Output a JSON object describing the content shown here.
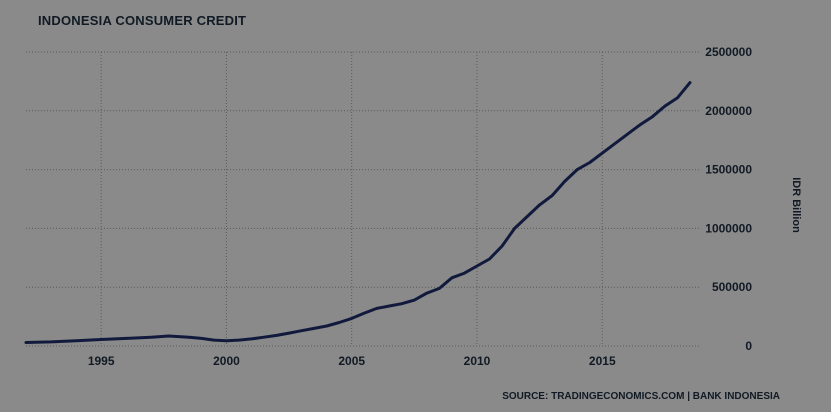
{
  "header": {
    "title": "INDONESIA CONSUMER CREDIT"
  },
  "footer": {
    "source": "SOURCE: TRADINGECONOMICS.COM | BANK INDONESIA"
  },
  "colors": {
    "background": "#8a8a8a",
    "line": "#111a3c",
    "grid": "#5a5a5a",
    "text": "#111a24"
  },
  "chart_data": {
    "type": "line",
    "title": "INDONESIA CONSUMER CREDIT",
    "xlabel": "",
    "ylabel": "IDR Billion",
    "xlim": [
      1992.0,
      2018.9
    ],
    "ylim": [
      0,
      2500000
    ],
    "x_ticks": [
      1995,
      2000,
      2005,
      2010,
      2015
    ],
    "x_tick_labels": [
      "1995",
      "2000",
      "2005",
      "2010",
      "2015"
    ],
    "y_ticks": [
      0,
      500000,
      1000000,
      1500000,
      2000000,
      2500000
    ],
    "y_tick_labels": [
      "0",
      "500000",
      "1000000",
      "1500000",
      "2000000",
      "2500000"
    ],
    "y_axis_position": "right",
    "grid": true,
    "series": [
      {
        "x": [
          1992.0,
          1993.0,
          1994.0,
          1995.0,
          1996.0,
          1997.0,
          1997.7,
          1998.5,
          1999.0,
          1999.5,
          2000.0,
          2000.5,
          2001.0,
          2001.5,
          2002.0,
          2002.5,
          2003.0,
          2003.5,
          2004.0,
          2004.5,
          2005.0,
          2005.5,
          2006.0,
          2006.5,
          2007.0,
          2007.5,
          2008.0,
          2008.5,
          2009.0,
          2009.5,
          2010.0,
          2010.5,
          2011.0,
          2011.5,
          2012.0,
          2012.5,
          2013.0,
          2013.5,
          2014.0,
          2014.5,
          2015.0,
          2015.5,
          2016.0,
          2016.5,
          2017.0,
          2017.5,
          2018.0,
          2018.5
        ],
        "values": [
          30000,
          35000,
          45000,
          55000,
          65000,
          75000,
          85000,
          75000,
          65000,
          50000,
          45000,
          50000,
          60000,
          75000,
          90000,
          110000,
          130000,
          150000,
          170000,
          200000,
          235000,
          280000,
          320000,
          340000,
          360000,
          390000,
          450000,
          490000,
          580000,
          620000,
          680000,
          740000,
          850000,
          1000000,
          1100000,
          1200000,
          1280000,
          1400000,
          1500000,
          1560000,
          1640000,
          1720000,
          1800000,
          1880000,
          1950000,
          2040000,
          2110000,
          2240000
        ]
      }
    ]
  }
}
